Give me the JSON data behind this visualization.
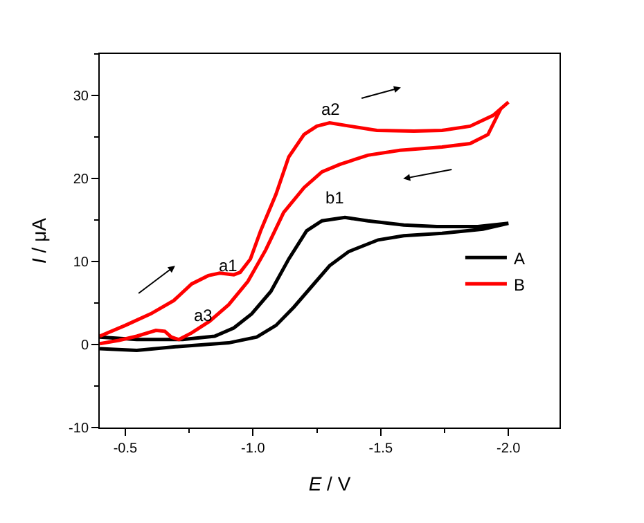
{
  "chart_data": {
    "type": "line",
    "xlabel": "E / V",
    "ylabel": "I / μA",
    "xlim": [
      -0.4,
      -2.2
    ],
    "xticks": [
      -0.5,
      {
        "value": -1.0,
        "label": "-1.0"
      },
      -1.5,
      {
        "value": -2.0,
        "label": "-2.0"
      }
    ],
    "ylim": [
      -10,
      35
    ],
    "yticks": [
      -10,
      0,
      10,
      20,
      30
    ],
    "legend": "right",
    "marker": "none",
    "line_style": "solid",
    "series": [
      {
        "name": "A",
        "color": "#000000",
        "x": [
          -0.4,
          -0.545,
          -0.725,
          -0.85,
          -0.925,
          -0.995,
          -1.07,
          -1.14,
          -1.21,
          -1.27,
          -1.36,
          -1.45,
          -1.59,
          -1.72,
          -1.88,
          -2.0,
          -1.9,
          -1.74,
          -1.59,
          -1.49,
          -1.375,
          -1.3,
          -1.23,
          -1.16,
          -1.09,
          -1.015,
          -0.905,
          -0.725,
          -0.545,
          -0.4
        ],
        "values": [
          0.9,
          0.6,
          0.6,
          1.0,
          2.0,
          3.7,
          6.4,
          10.3,
          13.7,
          14.9,
          15.3,
          14.9,
          14.4,
          14.2,
          14.2,
          14.6,
          13.9,
          13.4,
          13.1,
          12.6,
          11.2,
          9.5,
          7.0,
          4.5,
          2.3,
          0.9,
          0.2,
          -0.2,
          -0.7,
          -0.5
        ]
      },
      {
        "name": "B",
        "color": "#ff0000",
        "x": [
          -0.4,
          -0.5,
          -0.6,
          -0.69,
          -0.76,
          -0.825,
          -0.87,
          -0.925,
          -0.95,
          -0.99,
          -1.03,
          -1.09,
          -1.14,
          -1.2,
          -1.25,
          -1.3,
          -1.38,
          -1.485,
          -1.63,
          -1.74,
          -1.85,
          -1.94,
          -2.0,
          -1.97,
          -1.92,
          -1.85,
          -1.74,
          -1.575,
          -1.45,
          -1.34,
          -1.27,
          -1.2,
          -1.12,
          -1.05,
          -0.98,
          -0.905,
          -0.83,
          -0.76,
          -0.71,
          -0.68,
          -0.655,
          -0.62,
          -0.545,
          -0.475,
          -0.4
        ],
        "values": [
          1.0,
          2.3,
          3.7,
          5.3,
          7.3,
          8.3,
          8.6,
          8.4,
          8.7,
          10.3,
          13.7,
          18.1,
          22.6,
          25.3,
          26.3,
          26.7,
          26.3,
          25.8,
          25.7,
          25.8,
          26.3,
          27.6,
          29.2,
          28.4,
          25.3,
          24.2,
          23.8,
          23.4,
          22.8,
          21.7,
          20.8,
          18.9,
          15.9,
          11.4,
          7.6,
          4.8,
          2.8,
          1.4,
          0.6,
          0.9,
          1.6,
          1.7,
          1.0,
          0.5,
          0.1
        ]
      }
    ],
    "annotations": [
      "a1",
      "a2",
      "a3",
      "b1"
    ]
  }
}
